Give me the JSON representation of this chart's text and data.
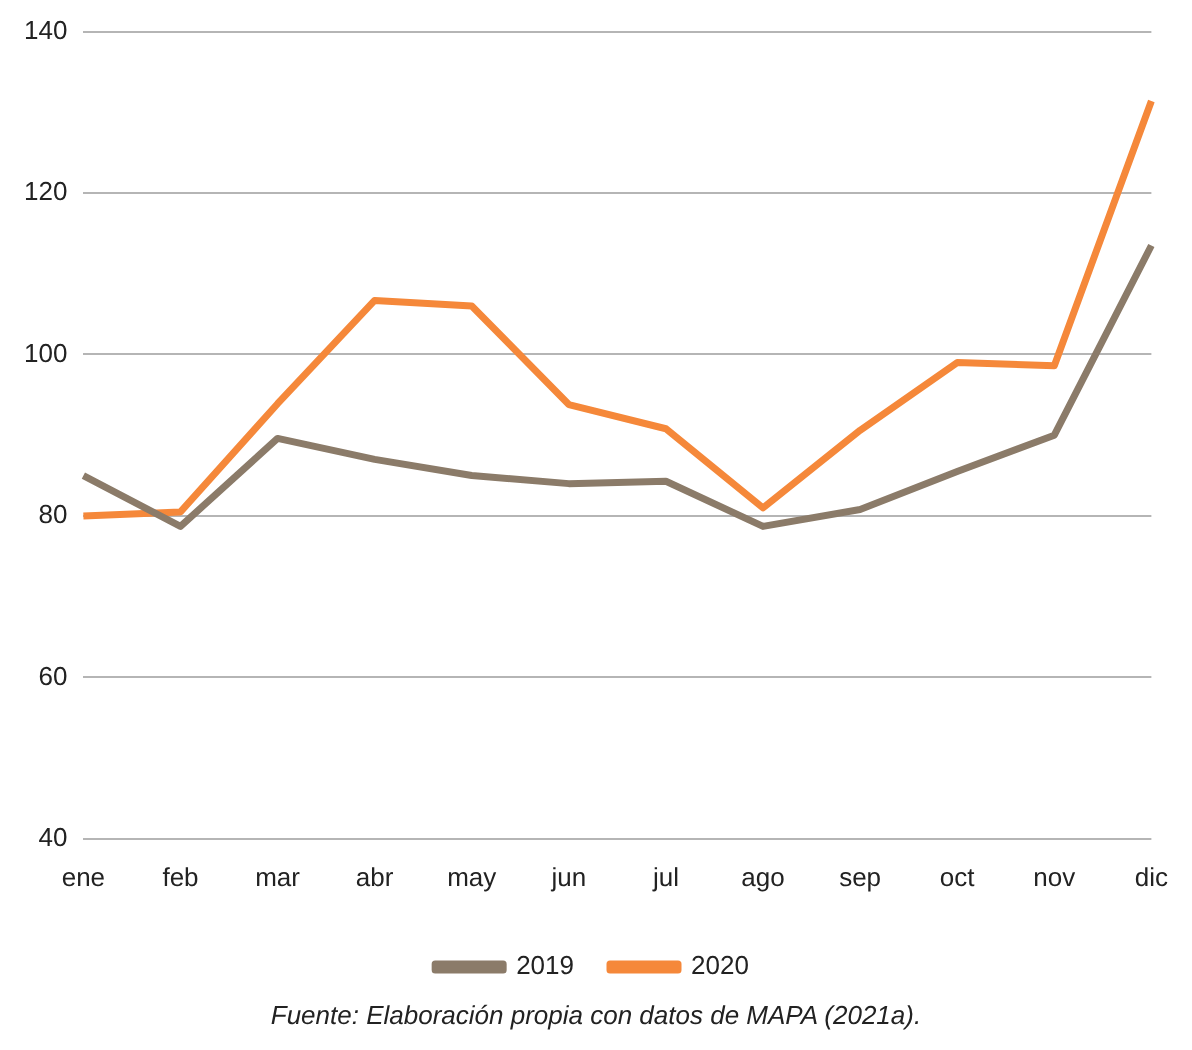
{
  "chart_data": {
    "type": "line",
    "categories": [
      "ene",
      "feb",
      "mar",
      "abr",
      "may",
      "jun",
      "jul",
      "ago",
      "sep",
      "oct",
      "nov",
      "dic"
    ],
    "series": [
      {
        "name": "2019",
        "color": "#8b7b69",
        "values": [
          85,
          78.7,
          89.6,
          87,
          85,
          84,
          84.3,
          78.7,
          80.8,
          85.5,
          90,
          113.5
        ]
      },
      {
        "name": "2020",
        "color": "#f5883a",
        "values": [
          80,
          80.5,
          93.9,
          106.7,
          106,
          93.8,
          90.8,
          81,
          90.6,
          99,
          98.6,
          131.4
        ]
      }
    ],
    "ylim": [
      40,
      140
    ],
    "yticks": [
      40,
      60,
      80,
      100,
      120,
      140
    ],
    "grid": "y",
    "legend": "bottom",
    "marker": "none",
    "line_style": "solid",
    "annotations": [
      "Fuente: Elaboración propia con datos de MAPA (2021a)."
    ]
  }
}
